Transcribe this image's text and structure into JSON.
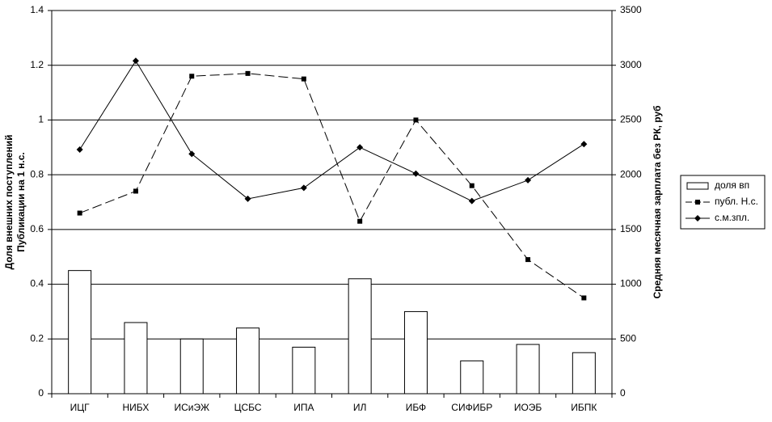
{
  "chart_data": {
    "type": "combo",
    "y_label": [
      "Доля внешних поступлений",
      "Публикации на 1 н.с."
    ],
    "y2_label": "Средняя месячная зарплата без РК, руб",
    "categories": [
      "ИЦГ",
      "НИБХ",
      "ИСиЭЖ",
      "ЦСБС",
      "ИПА",
      "ИЛ",
      "ИБФ",
      "СИФИБР",
      "ИОЭБ",
      "ИБПК"
    ],
    "series": [
      {
        "name": "доля вп",
        "type": "bar",
        "color": "#ffffff",
        "values": [
          0.45,
          0.26,
          0.2,
          0.24,
          0.17,
          0.42,
          0.3,
          0.12,
          0.18,
          0.15
        ]
      },
      {
        "name": "публ. Н.с.",
        "type": "line",
        "marker": "square",
        "dashed": true,
        "color": "#000000",
        "values": [
          0.66,
          0.74,
          1.16,
          1.17,
          1.15,
          0.63,
          1.0,
          0.76,
          0.49,
          0.35
        ]
      },
      {
        "name": "с.м.зпл.",
        "type": "line",
        "marker": "diamond",
        "dashed": false,
        "color": "#000000",
        "axis": "y2",
        "values": [
          2230,
          3040,
          2190,
          1780,
          1880,
          2250,
          2010,
          1760,
          1950,
          2280
        ]
      }
    ],
    "ylim": [
      0,
      1.4
    ],
    "yticks": [
      0,
      0.2,
      0.4,
      0.6,
      0.8,
      1,
      1.2,
      1.4
    ],
    "y2lim": [
      0,
      3500
    ],
    "y2ticks": [
      0,
      500,
      1000,
      1500,
      2000,
      2500,
      3000,
      3500
    ],
    "grid": true,
    "legend": "right"
  }
}
